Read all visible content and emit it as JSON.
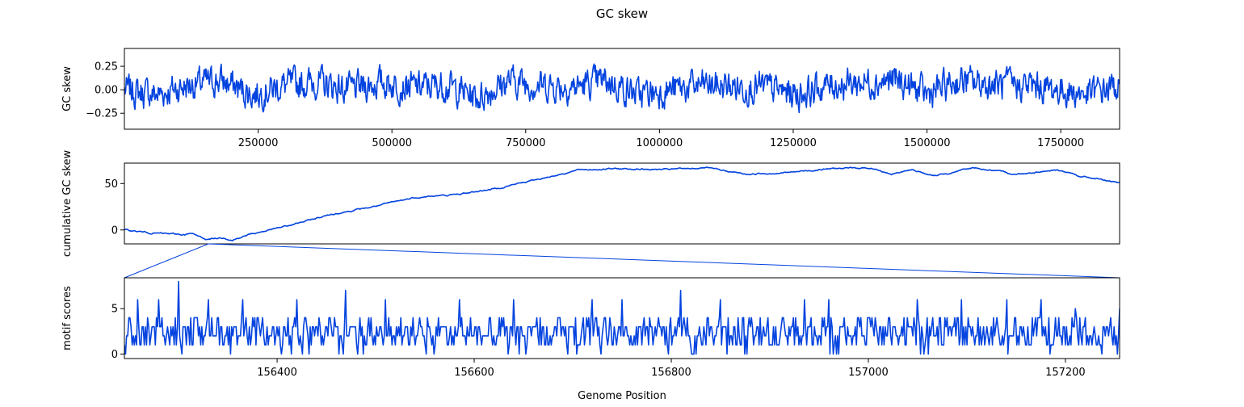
{
  "figure": {
    "title": "GC skew",
    "xlabel": "Genome Position",
    "accent_color": "#0343df"
  },
  "chart_data": [
    {
      "type": "line",
      "ylabel": "GC skew",
      "xlim": [
        1,
        1860000
      ],
      "ylim": [
        -0.42,
        0.44
      ],
      "x_ticks": [
        250000,
        500000,
        750000,
        1000000,
        1250000,
        1500000,
        1750000
      ],
      "x_tick_labels": [
        "250000",
        "500000",
        "750000",
        "1000000",
        "1250000",
        "1500000",
        "1750000"
      ],
      "y_ticks": [
        -0.25,
        0.0,
        0.25
      ],
      "y_tick_labels": [
        "−0.25",
        "0.00",
        "0.25"
      ],
      "series": [
        {
          "anchors": [
            [
              0,
              0.0
            ],
            [
              60000,
              -0.05
            ],
            [
              120000,
              0.05
            ],
            [
              180000,
              0.1
            ],
            [
              240000,
              -0.05
            ],
            [
              300000,
              0.05
            ],
            [
              360000,
              0.08
            ],
            [
              420000,
              0.0
            ],
            [
              480000,
              0.08
            ],
            [
              540000,
              0.03
            ],
            [
              600000,
              0.05
            ],
            [
              660000,
              -0.08
            ],
            [
              720000,
              0.1
            ],
            [
              780000,
              0.05
            ],
            [
              840000,
              0.03
            ],
            [
              900000,
              0.1
            ],
            [
              960000,
              -0.05
            ],
            [
              1020000,
              0.0
            ],
            [
              1080000,
              0.05
            ],
            [
              1140000,
              0.03
            ],
            [
              1200000,
              0.02
            ],
            [
              1260000,
              -0.05
            ],
            [
              1320000,
              0.05
            ],
            [
              1380000,
              0.08
            ],
            [
              1440000,
              0.1
            ],
            [
              1500000,
              -0.05
            ],
            [
              1560000,
              0.1
            ],
            [
              1620000,
              0.05
            ],
            [
              1680000,
              0.05
            ],
            [
              1740000,
              0.0
            ],
            [
              1800000,
              -0.05
            ],
            [
              1860000,
              0.05
            ]
          ],
          "noise_amplitude": 0.14,
          "min": -0.38,
          "max": 0.4
        }
      ]
    },
    {
      "type": "line",
      "ylabel": "cumulative GC skew",
      "xlim": [
        1,
        1860000
      ],
      "ylim": [
        -15,
        72
      ],
      "y_ticks": [
        0,
        50
      ],
      "y_tick_labels": [
        "0",
        "50"
      ],
      "series": [
        {
          "anchors": [
            [
              0,
              0
            ],
            [
              60000,
              -3
            ],
            [
              100000,
              -4
            ],
            [
              140000,
              -5
            ],
            [
              160000,
              -4
            ],
            [
              200000,
              -10
            ],
            [
              240000,
              -8
            ],
            [
              260000,
              -11
            ],
            [
              300000,
              -5
            ],
            [
              400000,
              5
            ],
            [
              500000,
              17
            ],
            [
              600000,
              25
            ],
            [
              650000,
              30
            ],
            [
              700000,
              35
            ],
            [
              800000,
              38
            ],
            [
              900000,
              45
            ],
            [
              1000000,
              55
            ],
            [
              1100000,
              65
            ],
            [
              1200000,
              66
            ],
            [
              1300000,
              65
            ],
            [
              1400000,
              67
            ],
            [
              1500000,
              60
            ],
            [
              1600000,
              62
            ],
            [
              1700000,
              66
            ],
            [
              1800000,
              67
            ],
            [
              1850000,
              60
            ],
            [
              1900000,
              65
            ],
            [
              1950000,
              58
            ],
            [
              2050000,
              67
            ],
            [
              2150000,
              60
            ],
            [
              2250000,
              65
            ],
            [
              2300000,
              58
            ],
            [
              2350000,
              55
            ],
            [
              2400000,
              50
            ]
          ],
          "noise_amplitude": 1.0
        }
      ]
    },
    {
      "type": "line",
      "ylabel": "motif scores",
      "xlim": [
        156245,
        157255
      ],
      "ylim": [
        -0.5,
        8.4
      ],
      "x_ticks": [
        156400,
        156600,
        156800,
        157000,
        157200
      ],
      "x_tick_labels": [
        "156400",
        "156600",
        "156800",
        "157000",
        "157200"
      ],
      "y_ticks": [
        0,
        5
      ],
      "y_tick_labels": [
        "0",
        "5"
      ],
      "series": [
        {
          "sample_count": 900,
          "typical_range": [
            0,
            4
          ],
          "peaks": [
            [
              156258,
              6
            ],
            [
              156280,
              6
            ],
            [
              156300,
              8
            ],
            [
              156330,
              6
            ],
            [
              156365,
              6
            ],
            [
              156420,
              6
            ],
            [
              156470,
              7
            ],
            [
              156510,
              6
            ],
            [
              156585,
              6
            ],
            [
              156640,
              6
            ],
            [
              156720,
              6
            ],
            [
              156750,
              6
            ],
            [
              156810,
              7
            ],
            [
              156850,
              6
            ],
            [
              156935,
              6
            ],
            [
              156960,
              6
            ],
            [
              157050,
              6
            ],
            [
              157095,
              6
            ],
            [
              157140,
              6
            ],
            [
              157175,
              6
            ],
            [
              157210,
              5
            ],
            [
              157255,
              5
            ]
          ]
        }
      ]
    }
  ]
}
